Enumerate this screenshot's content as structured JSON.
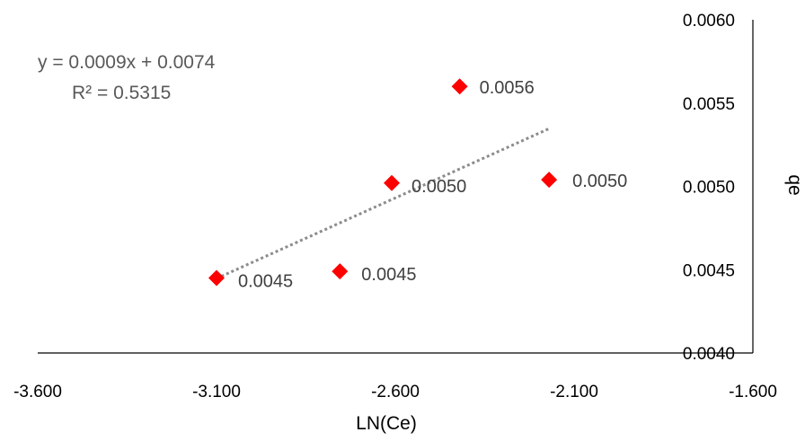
{
  "chart_data": {
    "type": "scatter",
    "title": "",
    "xlabel": "LN(Ce)",
    "ylabel": "qe",
    "xlim": [
      -3.6,
      -1.6
    ],
    "ylim": [
      0.004,
      0.006
    ],
    "x_ticks": [
      "-3.600",
      "-3.100",
      "-2.600",
      "-2.100",
      "-1.600"
    ],
    "y_ticks": [
      "0.0040",
      "0.0045",
      "0.0050",
      "0.0055",
      "0.0060"
    ],
    "grid": false,
    "series": [
      {
        "marker": "diamond",
        "color": "#ff0000",
        "points": [
          {
            "x": -3.1,
            "y": 0.00445,
            "label": "0.0045"
          },
          {
            "x": -2.755,
            "y": 0.00449,
            "label": "0.0045"
          },
          {
            "x": -2.61,
            "y": 0.00502,
            "label": "0.0050"
          },
          {
            "x": -2.42,
            "y": 0.0056,
            "label": "0.0056"
          },
          {
            "x": -2.17,
            "y": 0.00504,
            "label": "0.0050"
          }
        ]
      }
    ],
    "trendline": {
      "type": "linear",
      "style": "dotted",
      "color": "#8c8c8c",
      "x_range": [
        -3.1,
        -2.17
      ],
      "equation": "y = 0.0009x + 0.0074",
      "r2": "R² = 0.5315"
    }
  }
}
